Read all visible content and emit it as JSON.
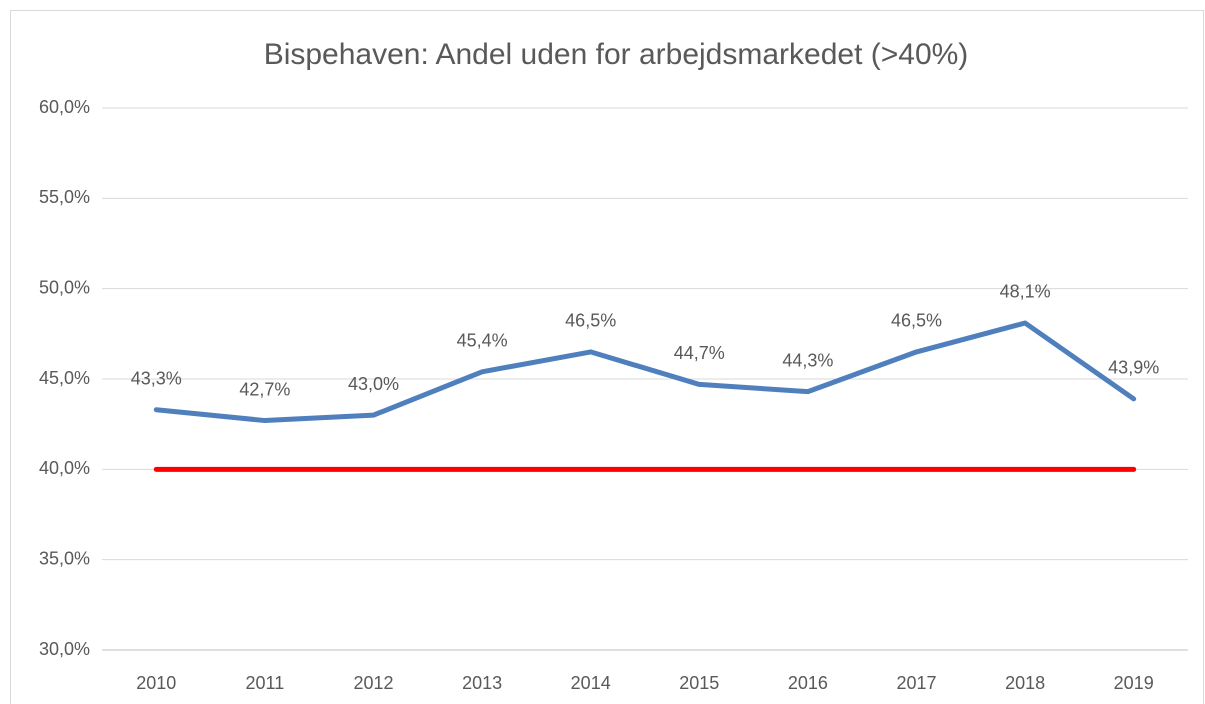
{
  "chart_data": {
    "type": "line",
    "title": "Bispehaven: Andel uden for arbejdsmarkedet (>40%)",
    "categories": [
      "2010",
      "2011",
      "2012",
      "2013",
      "2014",
      "2015",
      "2016",
      "2017",
      "2018",
      "2019"
    ],
    "series": [
      {
        "color": "#4f7fbd",
        "values": [
          43.3,
          42.7,
          43.0,
          45.4,
          46.5,
          44.7,
          44.3,
          46.5,
          48.1,
          43.9
        ],
        "value_labels": [
          "43,3%",
          "42,7%",
          "43,0%",
          "45,4%",
          "46,5%",
          "44,7%",
          "44,3%",
          "46,5%",
          "48,1%",
          "43,9%"
        ]
      },
      {
        "color": "#ff0000",
        "values": [
          40,
          40,
          40,
          40,
          40,
          40,
          40,
          40,
          40,
          40
        ]
      }
    ],
    "ylim": [
      30,
      60
    ],
    "yticks": [
      {
        "value": 30,
        "label": "30,0%"
      },
      {
        "value": 35,
        "label": "35,0%"
      },
      {
        "value": 40,
        "label": "40,0%"
      },
      {
        "value": 45,
        "label": "45,0%"
      },
      {
        "value": 50,
        "label": "50,0%"
      },
      {
        "value": 55,
        "label": "55,0%"
      },
      {
        "value": 60,
        "label": "60,0%"
      }
    ],
    "grid": true
  }
}
